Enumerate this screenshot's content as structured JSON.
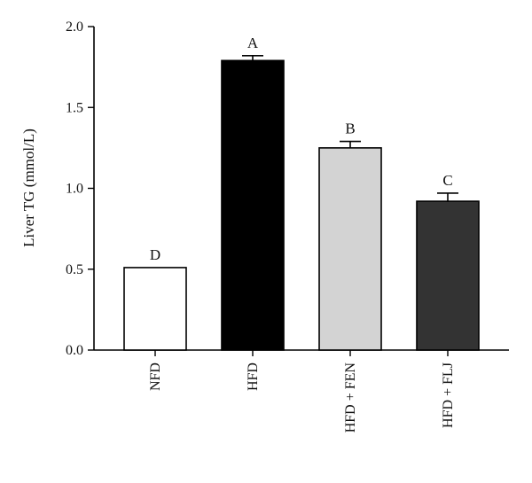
{
  "chart_data": {
    "type": "bar",
    "title": "",
    "xlabel": "",
    "ylabel": "Liver TG (mmol/L)",
    "ylim": [
      0,
      2.0
    ],
    "yticks": [
      "0.0",
      "0.5",
      "1.0",
      "1.5",
      "2.0"
    ],
    "grid": false,
    "categories": [
      "NFD",
      "HFD",
      "HFD + FEN",
      "HFD + FLJ"
    ],
    "values": [
      0.51,
      1.79,
      1.25,
      0.92
    ],
    "errors": [
      0.0,
      0.03,
      0.04,
      0.05
    ],
    "significance_letters": [
      "D",
      "A",
      "B",
      "C"
    ],
    "bar_colors": [
      "#ffffff",
      "#000000",
      "#d3d3d3",
      "#333333"
    ]
  }
}
